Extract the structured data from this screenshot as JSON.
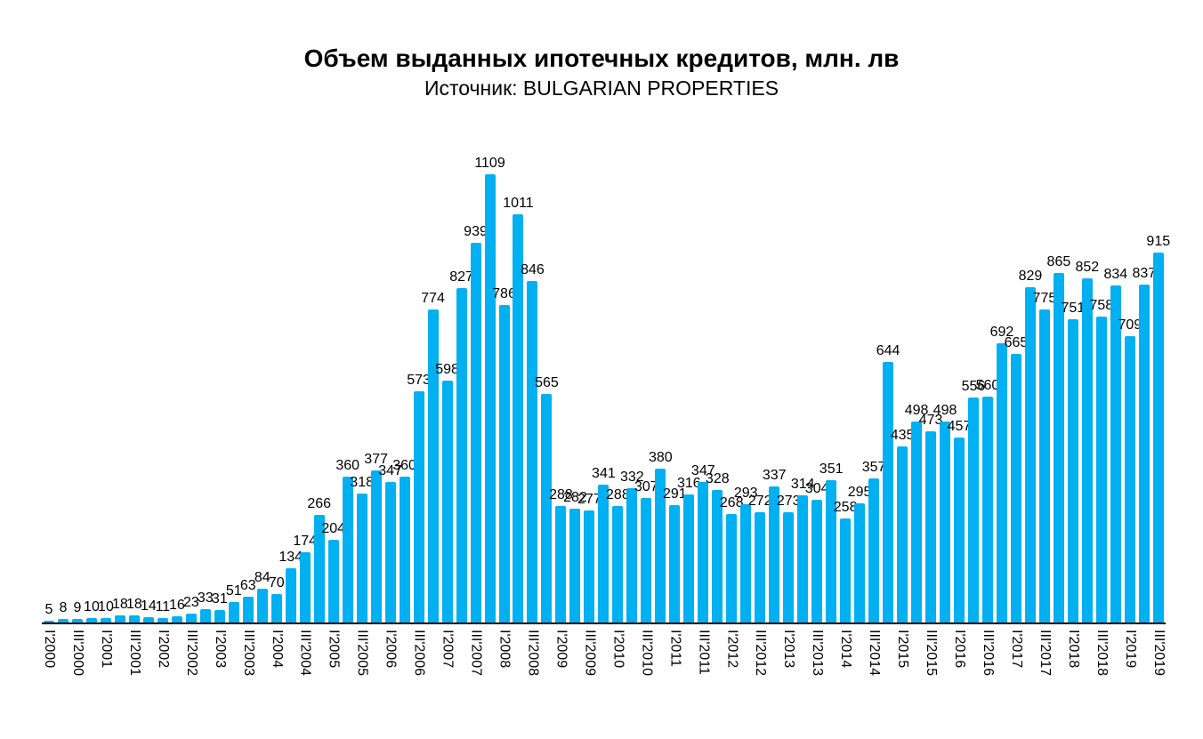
{
  "page": {
    "background": "#ffffff"
  },
  "chart_data": {
    "type": "bar",
    "title": "Объем выданных ипотечных кредитов, млн. лв",
    "subtitle": "Источник: BULGARIAN PROPERTIES",
    "bar_color": "#00b0f0",
    "text_color": "#000000",
    "grid": false,
    "y_axis_visible": false,
    "x_axis_line": true,
    "ylim": [
      0,
      1109
    ],
    "value_labels_shown": true,
    "tick_every": 2,
    "x_tick_labels": [
      "I'2000",
      "III'2000",
      "I'2001",
      "III'2001",
      "I'2002",
      "III'2002",
      "I'2003",
      "III'2003",
      "I'2004",
      "III'2004",
      "I'2005",
      "III'2005",
      "I'2006",
      "III'2006",
      "I'2007",
      "III'2007",
      "I'2008",
      "III'2008",
      "I'2009",
      "III'2009",
      "I'2010",
      "III'2010",
      "I'2011",
      "III'2011",
      "I'2012",
      "III'2012",
      "I'2013",
      "III'2013",
      "I'2014",
      "III'2014",
      "I'2015",
      "III'2015",
      "I'2016",
      "III'2016",
      "I'2017",
      "III'2017",
      "I'2018",
      "III'2018",
      "I'2019",
      "III'2019"
    ],
    "values": [
      5,
      8,
      9,
      10,
      10,
      18,
      18,
      14,
      11,
      16,
      23,
      33,
      31,
      51,
      63,
      84,
      70,
      134,
      174,
      266,
      204,
      360,
      318,
      377,
      347,
      360,
      573,
      774,
      598,
      827,
      939,
      1109,
      786,
      1011,
      846,
      565,
      288,
      282,
      277,
      341,
      288,
      332,
      307,
      380,
      291,
      316,
      347,
      328,
      268,
      293,
      272,
      337,
      273,
      314,
      304,
      351,
      258,
      295,
      357,
      644,
      435,
      498,
      473,
      498,
      457,
      556,
      560,
      692,
      665,
      829,
      775,
      865,
      751,
      852,
      758,
      834,
      709,
      837,
      915
    ]
  }
}
